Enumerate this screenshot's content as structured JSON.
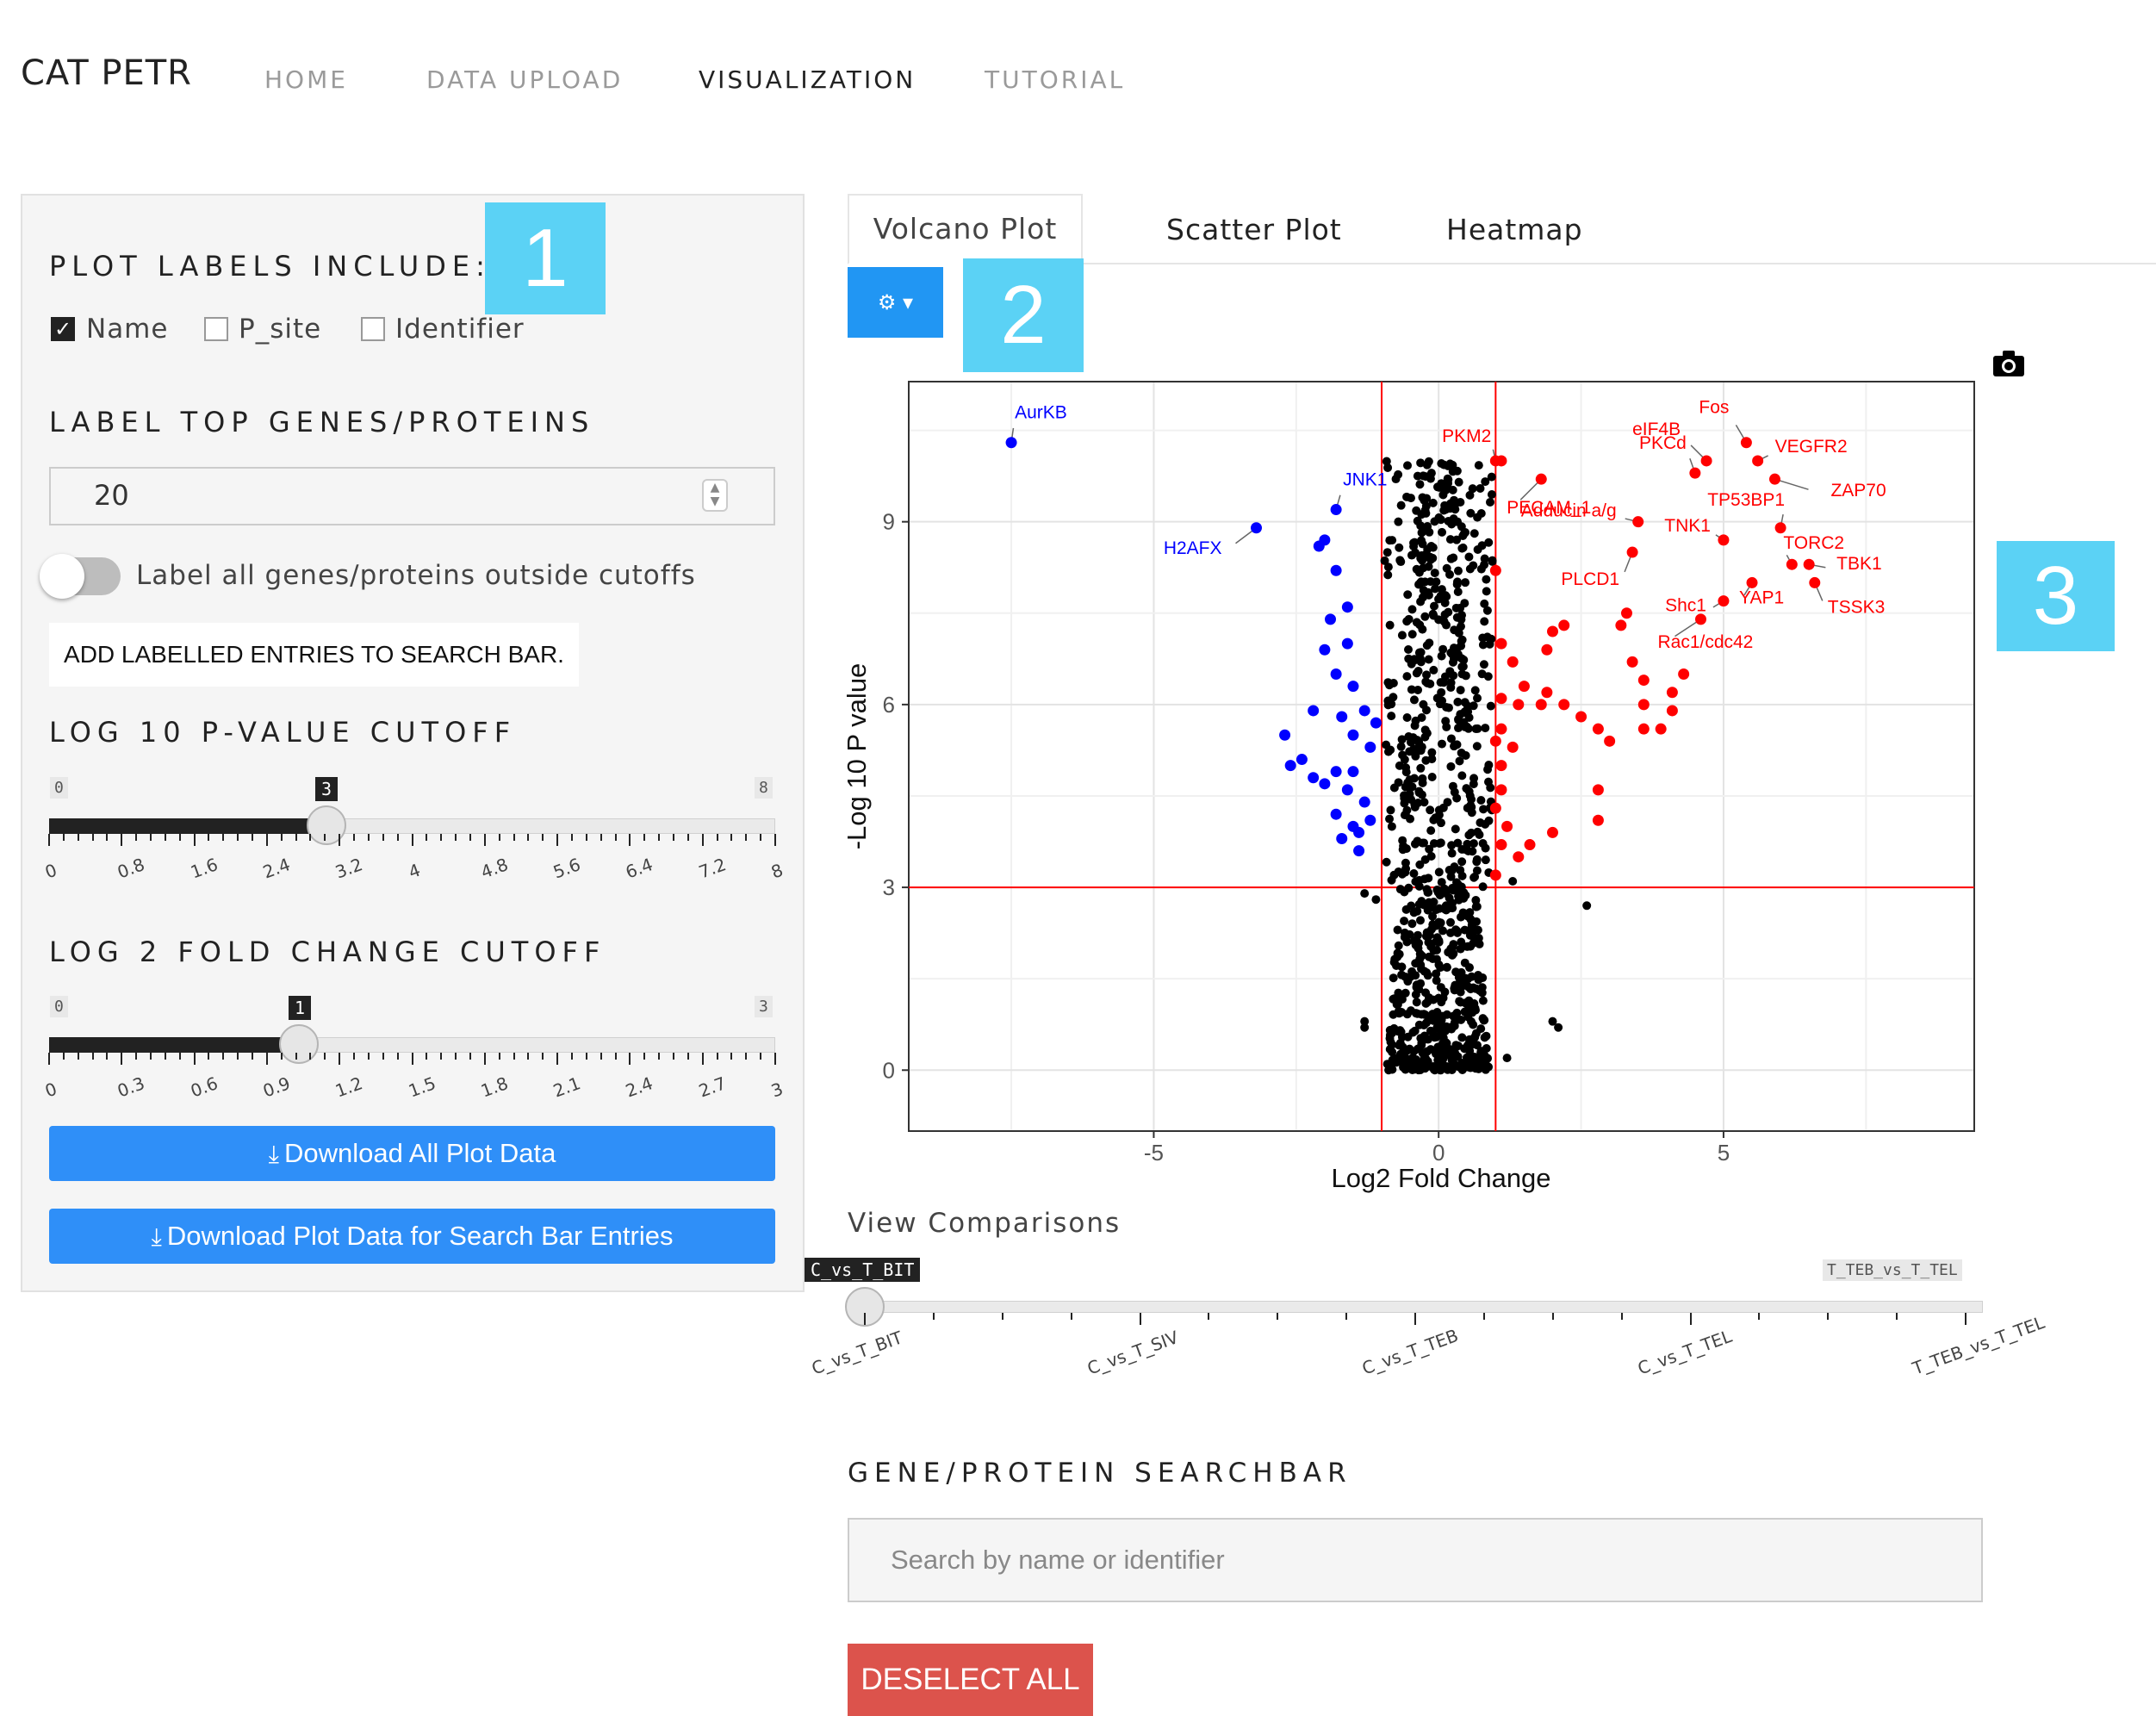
{
  "app": {
    "brand": "CAT PETR"
  },
  "nav": [
    {
      "label": "HOME",
      "active": false
    },
    {
      "label": "DATA UPLOAD",
      "active": false
    },
    {
      "label": "VISUALIZATION",
      "active": true
    },
    {
      "label": "TUTORIAL",
      "active": false
    }
  ],
  "sidebar": {
    "plot_labels_title": "PLOT LABELS INCLUDE:",
    "checkboxes": [
      {
        "label": "Name",
        "checked": true
      },
      {
        "label": "P_site",
        "checked": false
      },
      {
        "label": "Identifier",
        "checked": false
      }
    ],
    "top_genes_title": "LABEL TOP GENES/PROTEINS",
    "top_genes_value": "20",
    "toggle_label": "Label all genes/proteins outside cutoffs",
    "add_labels_button": "ADD LABELLED ENTRIES TO SEARCH BAR.",
    "pvalue_title": "LOG 10 P-VALUE CUTOFF",
    "pvalue_slider": {
      "min": "0",
      "max": "8",
      "value": "3",
      "ticks": [
        "0",
        "0.8",
        "1.6",
        "2.4",
        "3.2",
        "4",
        "4.8",
        "5.6",
        "6.4",
        "7.2",
        "8"
      ]
    },
    "fc_title": "LOG 2 FOLD CHANGE CUTOFF",
    "fc_slider": {
      "min": "0",
      "max": "3",
      "value": "1",
      "ticks": [
        "0",
        "0.3",
        "0.6",
        "0.9",
        "1.2",
        "1.5",
        "1.8",
        "2.1",
        "2.4",
        "2.7",
        "3"
      ]
    },
    "download_all": "Download All Plot Data",
    "download_search": "Download Plot Data for Search Bar Entries"
  },
  "badges": [
    "1",
    "2",
    "3"
  ],
  "tabs": [
    "Volcano Plot",
    "Scatter Plot",
    "Heatmap"
  ],
  "icons": {
    "gear": "gear-icon",
    "camera": "camera-icon",
    "download": "download-icon"
  },
  "colors": {
    "up": "#ff0000",
    "down": "#0000ff",
    "ns": "#000000",
    "button_blue": "#2f8ff8",
    "deselect": "#dc534c",
    "badge": "#5bd2f5"
  },
  "chart_data": {
    "type": "scatter",
    "xlabel": "Log2 Fold Change",
    "ylabel": "-Log 10 P value",
    "x_ticks": [
      "-5",
      "0",
      "5"
    ],
    "y_ticks": [
      "0",
      "3",
      "6",
      "9"
    ],
    "xlim": [
      -9.3,
      9.4
    ],
    "ylim": [
      -1,
      11.3
    ],
    "cutoff_lines": {
      "x": [
        -1,
        1
      ],
      "y": 3,
      "color": "#ff0000"
    },
    "labeled_points": [
      {
        "name": "AurKB",
        "x": -7.5,
        "y": 10.3,
        "group": "down"
      },
      {
        "name": "JNK1",
        "x": -1.8,
        "y": 9.2,
        "group": "down"
      },
      {
        "name": "H2AFX",
        "x": -3.2,
        "y": 8.9,
        "group": "down"
      },
      {
        "name": "PKM2",
        "x": 1.0,
        "y": 10.0,
        "group": "up"
      },
      {
        "name": "PECAM_1",
        "x": 1.8,
        "y": 9.7,
        "group": "up"
      },
      {
        "name": "Fos",
        "x": 5.4,
        "y": 10.3,
        "group": "up"
      },
      {
        "name": "eIF4B",
        "x": 4.7,
        "y": 10.0,
        "group": "up"
      },
      {
        "name": "VEGFR2",
        "x": 5.6,
        "y": 10.0,
        "group": "up"
      },
      {
        "name": "ZAP70",
        "x": 5.9,
        "y": 9.7,
        "group": "up"
      },
      {
        "name": "PKCd",
        "x": 4.5,
        "y": 9.8,
        "group": "up"
      },
      {
        "name": "TP53BP1",
        "x": 6.0,
        "y": 8.9,
        "group": "up"
      },
      {
        "name": "Adducin a/g",
        "x": 3.5,
        "y": 9.0,
        "group": "up"
      },
      {
        "name": "TNK1",
        "x": 5.0,
        "y": 8.7,
        "group": "up"
      },
      {
        "name": "TORC2",
        "x": 6.2,
        "y": 8.3,
        "group": "up"
      },
      {
        "name": "TBK1",
        "x": 6.5,
        "y": 8.3,
        "group": "up"
      },
      {
        "name": "PLCD1",
        "x": 3.4,
        "y": 8.5,
        "group": "up"
      },
      {
        "name": "Shc1",
        "x": 5.0,
        "y": 7.7,
        "group": "up"
      },
      {
        "name": "YAP1",
        "x": 5.5,
        "y": 8.0,
        "group": "up"
      },
      {
        "name": "TSSK3",
        "x": 6.6,
        "y": 8.0,
        "group": "up"
      },
      {
        "name": "Rac1/cdc42",
        "x": 4.6,
        "y": 7.4,
        "group": "up"
      }
    ],
    "significant_down": [
      [
        -2.1,
        8.6
      ],
      [
        -2.0,
        8.7
      ],
      [
        -1.8,
        8.2
      ],
      [
        -1.6,
        7.6
      ],
      [
        -1.9,
        7.4
      ],
      [
        -1.6,
        7.0
      ],
      [
        -2.0,
        6.9
      ],
      [
        -1.5,
        6.3
      ],
      [
        -1.8,
        6.5
      ],
      [
        -2.2,
        5.9
      ],
      [
        -1.7,
        5.8
      ],
      [
        -1.3,
        5.9
      ],
      [
        -1.5,
        5.5
      ],
      [
        -2.6,
        5.0
      ],
      [
        -2.2,
        4.8
      ],
      [
        -1.8,
        4.9
      ],
      [
        -1.5,
        4.9
      ],
      [
        -1.2,
        5.3
      ],
      [
        -1.6,
        4.6
      ],
      [
        -1.3,
        4.4
      ],
      [
        -1.8,
        4.2
      ],
      [
        -1.5,
        4.0
      ],
      [
        -1.2,
        4.1
      ],
      [
        -1.4,
        3.9
      ],
      [
        -1.7,
        3.8
      ],
      [
        -2.4,
        5.1
      ],
      [
        -2.0,
        4.7
      ],
      [
        -1.4,
        3.6
      ],
      [
        -1.1,
        5.7
      ],
      [
        -2.7,
        5.5
      ]
    ],
    "significant_up": [
      [
        1.1,
        10.0
      ],
      [
        1.0,
        8.2
      ],
      [
        1.1,
        7.0
      ],
      [
        1.3,
        6.7
      ],
      [
        1.5,
        6.3
      ],
      [
        1.9,
        6.2
      ],
      [
        1.9,
        6.9
      ],
      [
        2.0,
        7.2
      ],
      [
        2.2,
        7.3
      ],
      [
        2.2,
        6.0
      ],
      [
        1.4,
        6.0
      ],
      [
        1.1,
        5.6
      ],
      [
        1.0,
        5.4
      ],
      [
        1.1,
        5.0
      ],
      [
        1.1,
        4.6
      ],
      [
        1.0,
        4.3
      ],
      [
        1.2,
        4.0
      ],
      [
        1.1,
        3.7
      ],
      [
        1.6,
        3.7
      ],
      [
        2.0,
        3.9
      ],
      [
        1.0,
        3.2
      ],
      [
        1.4,
        3.5
      ],
      [
        1.8,
        6.0
      ],
      [
        2.5,
        5.8
      ],
      [
        2.8,
        5.6
      ],
      [
        3.0,
        5.4
      ],
      [
        2.8,
        4.6
      ],
      [
        2.8,
        4.1
      ],
      [
        3.4,
        6.7
      ],
      [
        3.6,
        6.4
      ],
      [
        3.6,
        6.0
      ],
      [
        3.6,
        5.6
      ],
      [
        3.9,
        5.6
      ],
      [
        4.1,
        6.2
      ],
      [
        4.3,
        6.5
      ],
      [
        4.1,
        5.9
      ],
      [
        3.2,
        7.3
      ],
      [
        3.3,
        7.5
      ],
      [
        1.1,
        6.1
      ],
      [
        1.3,
        5.3
      ]
    ],
    "not_significant_summary": "dense black cloud between x=-1..1, y=0..10, plus scattered points near threshold"
  },
  "comparisons": {
    "title": "View Comparisons",
    "selected": "C_vs_T_BIT",
    "max_label": "T_TEB_vs_T_TEL",
    "ticks": [
      "C_vs_T_BIT",
      "C_vs_T_SIV",
      "C_vs_T_TEB",
      "C_vs_T_TEL",
      "T_TEB_vs_T_TEL"
    ]
  },
  "search": {
    "title": "GENE/PROTEIN SEARCHBAR",
    "placeholder": "Search by name or identifier",
    "deselect_button": "DESELECT ALL"
  }
}
